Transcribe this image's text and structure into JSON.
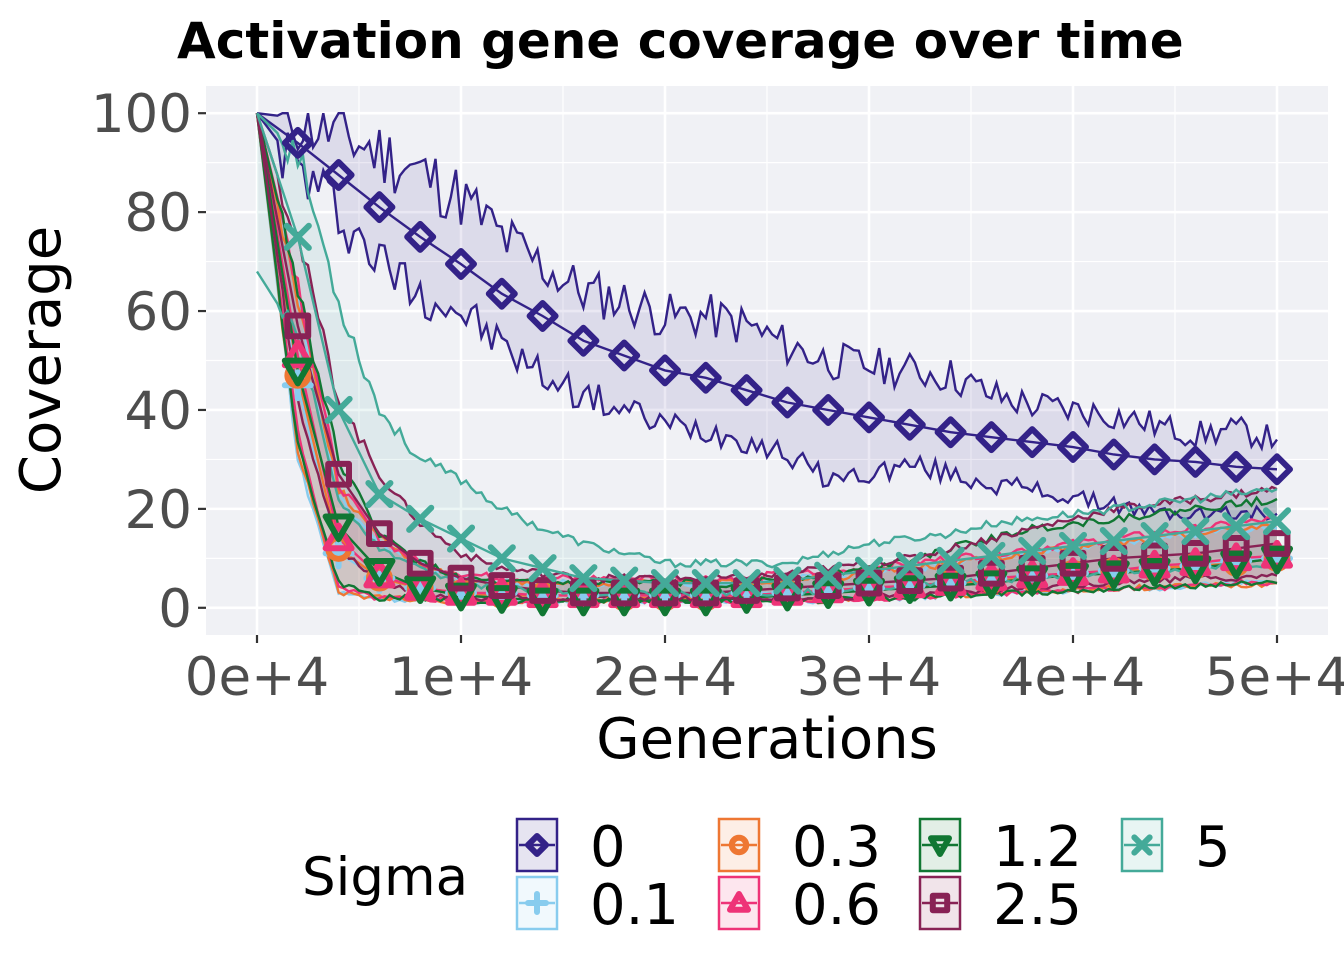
{
  "chart_data": {
    "type": "line",
    "title": "Activation gene coverage over time",
    "xlabel": "Generations",
    "ylabel": "Coverage",
    "xlim": [
      -2500,
      52500
    ],
    "ylim": [
      -5.5,
      105.5
    ],
    "x_ticks": [
      0,
      10000,
      20000,
      30000,
      40000,
      50000
    ],
    "x_tick_labels": [
      "0e+4",
      "1e+4",
      "2e+4",
      "3e+4",
      "4e+4",
      "5e+4"
    ],
    "y_ticks": [
      0,
      20,
      40,
      60,
      80,
      100
    ],
    "y_tick_labels": [
      "0",
      "20",
      "40",
      "60",
      "80",
      "100"
    ],
    "grid": true,
    "legend": {
      "title": "Sigma",
      "placement": "bottom",
      "entries": [
        "0",
        "0.1",
        "0.3",
        "0.6",
        "1.2",
        "2.5",
        "5"
      ]
    },
    "x": [
      0,
      2000,
      4000,
      6000,
      8000,
      10000,
      12000,
      14000,
      16000,
      18000,
      20000,
      22000,
      24000,
      26000,
      28000,
      30000,
      32000,
      34000,
      36000,
      38000,
      40000,
      42000,
      44000,
      46000,
      48000,
      50000
    ],
    "series": [
      {
        "name": "0",
        "color": "#332288",
        "marker": "diamond",
        "values": [
          100,
          94,
          87.5,
          81,
          75,
          69.5,
          63.5,
          59,
          54,
          51,
          48,
          46.5,
          44,
          41.5,
          40,
          38.5,
          37,
          35.5,
          34.5,
          33.5,
          32.5,
          31,
          30,
          29.5,
          28.5,
          28
        ],
        "lower": [
          100,
          89,
          80,
          70,
          64,
          60,
          53,
          47,
          43,
          40,
          37,
          36,
          34,
          31,
          26,
          27,
          29,
          27,
          25,
          24,
          22,
          21,
          19,
          19,
          19,
          19
        ],
        "upper": [
          100,
          99,
          96,
          92,
          88,
          83,
          75,
          69,
          64,
          62,
          59,
          59,
          57,
          53,
          50,
          49,
          48,
          47,
          43,
          41,
          40,
          39,
          37,
          35,
          36,
          34
        ]
      },
      {
        "name": "0.1",
        "color": "#88ccee",
        "marker": "plus",
        "values": [
          100,
          45,
          11,
          6,
          4,
          3,
          3,
          2.5,
          2.5,
          2.5,
          2.5,
          2.5,
          3,
          3,
          3.5,
          4,
          4.5,
          5,
          6,
          6.5,
          7,
          7.5,
          8,
          8.5,
          9.5,
          10
        ],
        "lower": [
          100,
          30,
          3,
          2,
          1.5,
          1.5,
          1.5,
          1.5,
          1.5,
          1.5,
          1.5,
          1.5,
          1.5,
          1.5,
          1.5,
          2,
          2,
          2.5,
          3,
          3,
          3.5,
          4,
          4,
          4.5,
          5,
          5
        ],
        "upper": [
          100,
          62,
          22,
          13,
          9,
          6,
          5,
          5,
          5,
          5,
          5,
          5,
          5,
          6,
          6,
          7,
          8,
          9,
          10,
          11,
          12,
          13,
          14,
          15,
          16,
          16
        ]
      },
      {
        "name": "0.3",
        "color": "#ee7733",
        "marker": "circle",
        "values": [
          100,
          47,
          12,
          6,
          4,
          3,
          2.5,
          2.5,
          2.5,
          2,
          2,
          2,
          2.5,
          3,
          3.5,
          4,
          4.5,
          5,
          5.5,
          6,
          7,
          7.5,
          8,
          8.5,
          9,
          10
        ],
        "lower": [
          100,
          32,
          3,
          2,
          1.5,
          1.5,
          1.5,
          1.5,
          1.5,
          1.5,
          1.5,
          1.5,
          1.5,
          1.5,
          1.5,
          2,
          2,
          2.5,
          3,
          3,
          3.5,
          4,
          4,
          4.5,
          4.5,
          5
        ],
        "upper": [
          100,
          63,
          24,
          14,
          9,
          6,
          5,
          5,
          5,
          5,
          5,
          5,
          5,
          6,
          6,
          7,
          8,
          9,
          10,
          11,
          12,
          13,
          14,
          15,
          16,
          17
        ]
      },
      {
        "name": "0.6",
        "color": "#ee3377",
        "marker": "triangle-up",
        "values": [
          100,
          51,
          14,
          6.5,
          4,
          3,
          3,
          2.5,
          2.5,
          2.5,
          2.5,
          2.5,
          2.5,
          3,
          3.5,
          4,
          4.5,
          5,
          6,
          6.5,
          7,
          7.5,
          8.5,
          9,
          10,
          10.5
        ],
        "lower": [
          100,
          35,
          4,
          2,
          2,
          1.5,
          1.5,
          1.5,
          1.5,
          1.5,
          1.5,
          1.5,
          1.5,
          1.5,
          1.5,
          2,
          2,
          2.5,
          3,
          3,
          3.5,
          4,
          4,
          4.5,
          5,
          5
        ],
        "upper": [
          100,
          66,
          25,
          14,
          9,
          7,
          6,
          6,
          6,
          6,
          6,
          6,
          6,
          7,
          7,
          8,
          9,
          10,
          11,
          12,
          13,
          14,
          15,
          16,
          17,
          18
        ]
      },
      {
        "name": "1.2",
        "color": "#117733",
        "marker": "triangle-down",
        "values": [
          100,
          48,
          16.5,
          7.5,
          4,
          2.5,
          2,
          1.5,
          1.5,
          1.5,
          1.5,
          1.5,
          2,
          2.5,
          3,
          3.5,
          4,
          4.5,
          5,
          6,
          6.5,
          7,
          7.5,
          8,
          9,
          10
        ],
        "lower": [
          100,
          33,
          5,
          2,
          2,
          1.5,
          1.5,
          1.5,
          1.5,
          1.5,
          1.5,
          1.5,
          1.5,
          1.5,
          1.5,
          2,
          2,
          2.5,
          3,
          3,
          3.5,
          4,
          4,
          4.5,
          5,
          5
        ],
        "upper": [
          100,
          65,
          30,
          15,
          9,
          6,
          5,
          5,
          5,
          5,
          5,
          5,
          5,
          6,
          7,
          8,
          10,
          12,
          14,
          16,
          17,
          18,
          19,
          20,
          21,
          22
        ]
      },
      {
        "name": "2.5",
        "color": "#882255",
        "marker": "square",
        "values": [
          100,
          57,
          27,
          15,
          9,
          6,
          4.5,
          3.5,
          3,
          3,
          3,
          3,
          3.5,
          4,
          4.5,
          5,
          5.5,
          6,
          7,
          8,
          9,
          10,
          10.5,
          11,
          12,
          13
        ],
        "lower": [
          100,
          42,
          12,
          5,
          3,
          2,
          2,
          2,
          2,
          2,
          2,
          2,
          2,
          2,
          2,
          2.5,
          3,
          3,
          3.5,
          4,
          4.5,
          5,
          5.5,
          6,
          6,
          6.5
        ],
        "upper": [
          100,
          75,
          42,
          27,
          17,
          11,
          8,
          7,
          6,
          6,
          6,
          6,
          6,
          7,
          8,
          9,
          10,
          12,
          14,
          16,
          18,
          20,
          21,
          22,
          23,
          24
        ]
      },
      {
        "name": "5",
        "color": "#44aa99",
        "marker": "x",
        "values": [
          100,
          75,
          40,
          23,
          18,
          14,
          10,
          8,
          6,
          5.5,
          5,
          5,
          5,
          5.5,
          6.5,
          7.5,
          8.5,
          9.5,
          10.5,
          11.5,
          12.5,
          13.5,
          14.5,
          15.5,
          16.5,
          17.5
        ],
        "lower": [
          68,
          55,
          22,
          12,
          8,
          5,
          4,
          3.5,
          3,
          3,
          3,
          3,
          3,
          3,
          3.5,
          4,
          4.5,
          5,
          5.5,
          6,
          6.5,
          7,
          7.5,
          8,
          8.5,
          9
        ],
        "upper": [
          100,
          92,
          62,
          40,
          30,
          26,
          20,
          16,
          13,
          11,
          9,
          9,
          9,
          9,
          11,
          13,
          14,
          15,
          17,
          18,
          19,
          20,
          21,
          22,
          23,
          24
        ]
      }
    ]
  }
}
